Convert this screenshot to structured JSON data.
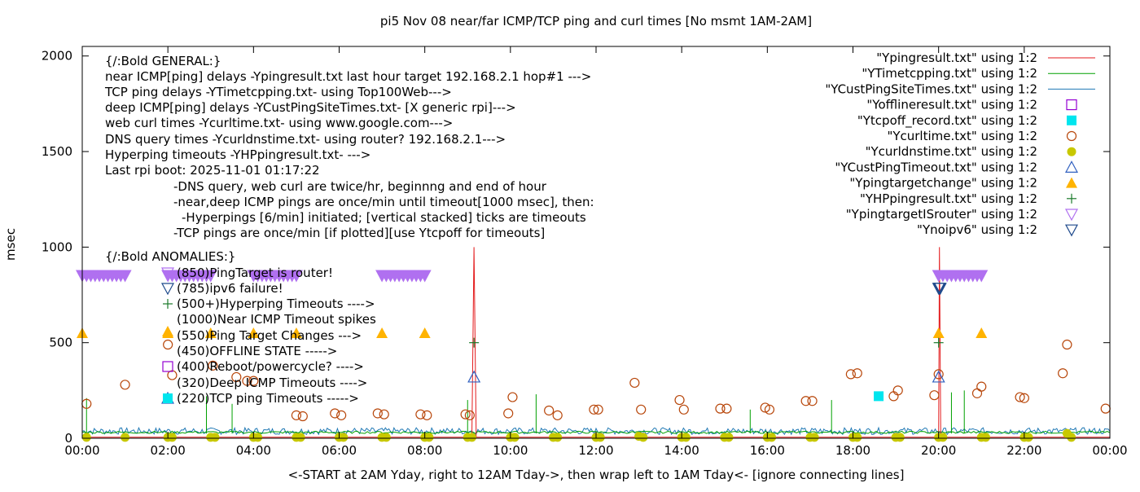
{
  "chart_data": {
    "type": "line",
    "title": "pi5 Nov 08  near/far ICMP/TCP ping and curl times [No msmt 1AM-2AM]",
    "xlabel": "<-START at 2AM Yday, right to 12AM Tday->, then wrap left to 1AM Tday<- [ignore connecting lines]",
    "ylabel": "msec",
    "xlim": [
      0,
      24
    ],
    "ylim": [
      0,
      2050
    ],
    "x_ticks": [
      "00:00",
      "02:00",
      "04:00",
      "06:00",
      "08:00",
      "10:00",
      "12:00",
      "14:00",
      "16:00",
      "18:00",
      "20:00",
      "22:00",
      "00:00"
    ],
    "y_ticks": [
      "0",
      "500",
      "1000",
      "1500",
      "2000"
    ],
    "y_tick_values": [
      0,
      500,
      1000,
      1500,
      2000
    ],
    "grid": false,
    "legend_position": "top-right",
    "colors": {
      "ypingresult": "#e31a1c",
      "ytimetcpping": "#00a000",
      "ycustpingsitetimes": "#1f78b4",
      "yofflineresult": "#9400d3",
      "ytcpoff": "#00e5ee",
      "ycurltime": "#b8470b",
      "ycurldnstime": "#c8c800",
      "ycustpingtimeout": "#3060c0",
      "ypingtargetchange": "#ffb300",
      "yhppingresult": "#1a7a2a",
      "ypingtargetisrouter": "#b070f0",
      "ynoipv6": "#1f4a8c"
    },
    "legend": [
      {
        "label": "\"Ypingresult.txt\" using 1:2",
        "key": "ypingresult",
        "marker": "line"
      },
      {
        "label": "\"YTimetcpping.txt\" using 1:2",
        "key": "ytimetcpping",
        "marker": "line"
      },
      {
        "label": "\"YCustPingSiteTimes.txt\" using 1:2",
        "key": "ycustpingsitetimes",
        "marker": "line"
      },
      {
        "label": "\"Yofflineresult.txt\" using 1:2",
        "key": "yofflineresult",
        "marker": "square-open"
      },
      {
        "label": "\"Ytcpoff_record.txt\" using 1:2",
        "key": "ytcpoff",
        "marker": "square-filled"
      },
      {
        "label": "\"Ycurltime.txt\" using 1:2",
        "key": "ycurltime",
        "marker": "circle-open"
      },
      {
        "label": "\"Ycurldnstime.txt\" using 1:2",
        "key": "ycurldnstime",
        "marker": "circle-filled"
      },
      {
        "label": "\"YCustPingTimeout.txt\" using 1:2",
        "key": "ycustpingtimeout",
        "marker": "triangle-open"
      },
      {
        "label": "\"Ypingtargetchange\" using 1:2",
        "key": "ypingtargetchange",
        "marker": "triangle-filled"
      },
      {
        "label": "\"YHPpingresult.txt\" using 1:2",
        "key": "yhppingresult",
        "marker": "plus"
      },
      {
        "label": "\"YpingtargetISrouter\" using 1:2",
        "key": "ypingtargetisrouter",
        "marker": "triangle-down-open"
      },
      {
        "label": "\"Ynoipv6\" using 1:2",
        "key": "ynoipv6",
        "marker": "triangle-down-open"
      }
    ],
    "annotations": [
      "{/:Bold GENERAL:}",
      "near ICMP[ping] delays -Ypingresult.txt last hour target 192.168.2.1 hop#1 --->",
      "TCP ping delays -YTimetcpping.txt- using Top100Web--->",
      "deep ICMP[ping] delays -YCustPingSiteTimes.txt- [X generic rpi]--->",
      "web curl times -Ycurltime.txt- using www.google.com--->",
      "DNS query times -Ycurldnstime.txt- using router? 192.168.2.1--->",
      "Hyperping timeouts -YHPpingresult.txt- --->",
      "Last rpi boot: 2025-11-01 01:17:22",
      "-DNS query, web curl are twice/hr, beginnng and end of hour",
      "-near,deep ICMP pings are once/min until timeout[1000 msec], then:",
      "-Hyperpings [6/min] initiated; [vertical stacked] ticks are timeouts",
      "-TCP pings are once/min [if plotted][use Ytcpoff for timeouts]",
      "{/:Bold ANOMALIES:}",
      "(850)PingTarget is router!",
      "(785)ipv6 failure!",
      "(500+)Hyperping Timeouts ---->",
      "(1000)Near ICMP Timeout spikes",
      "(550)Ping Target Changes --->",
      "(450)OFFLINE STATE ----->",
      "(400)Reboot/powercycle? ---->",
      "(320)Deep ICMP Timeouts ---->",
      "(220)TCP ping Timeouts ----->"
    ],
    "series": [
      {
        "name": "\"Ycurltime.txt\" using 1:2",
        "key": "ycurltime",
        "type": "scatter",
        "x": [
          0.1,
          1.0,
          2.0,
          2.1,
          3.05,
          3.6,
          3.85,
          4.0,
          5.0,
          5.15,
          5.9,
          6.05,
          6.9,
          7.05,
          7.9,
          8.05,
          8.95,
          9.05,
          9.95,
          10.05,
          10.9,
          11.1,
          11.95,
          12.05,
          12.9,
          13.05,
          13.95,
          14.05,
          14.9,
          15.05,
          15.95,
          16.05,
          16.9,
          17.05,
          17.95,
          18.1,
          18.95,
          19.05,
          19.9,
          20.0,
          20.9,
          21.0,
          21.9,
          22.0,
          22.9,
          23.0,
          23.9
        ],
        "y": [
          180,
          280,
          490,
          330,
          380,
          320,
          300,
          300,
          120,
          115,
          130,
          120,
          130,
          125,
          125,
          120,
          125,
          120,
          130,
          215,
          145,
          120,
          150,
          150,
          290,
          150,
          200,
          150,
          155,
          155,
          160,
          150,
          195,
          195,
          335,
          340,
          220,
          250,
          225,
          335,
          235,
          270,
          215,
          210,
          340,
          490,
          155
        ]
      },
      {
        "name": "\"Ycurldnstime.txt\" using 1:2",
        "key": "ycurldnstime",
        "type": "scatter",
        "x": [
          0.1,
          1.0,
          2.0,
          2.1,
          3.0,
          3.1,
          4.0,
          4.1,
          5.0,
          5.1,
          6.0,
          6.1,
          7.0,
          7.1,
          8.0,
          8.1,
          9.0,
          9.1,
          10.0,
          10.1,
          11.0,
          11.1,
          12.0,
          12.1,
          13.0,
          13.1,
          14.0,
          14.1,
          15.0,
          15.1,
          16.0,
          16.1,
          17.0,
          17.1,
          18.0,
          18.1,
          19.0,
          19.1,
          20.0,
          20.1,
          21.0,
          21.1,
          22.0,
          22.1,
          23.0,
          23.1
        ],
        "y": [
          5,
          5,
          5,
          5,
          5,
          5,
          5,
          5,
          5,
          5,
          5,
          5,
          5,
          5,
          5,
          5,
          5,
          5,
          5,
          5,
          5,
          5,
          5,
          5,
          10,
          5,
          5,
          5,
          5,
          5,
          5,
          5,
          5,
          5,
          5,
          5,
          5,
          5,
          5,
          5,
          5,
          5,
          5,
          5,
          25,
          5
        ]
      },
      {
        "name": "\"Ypingtargetchange\" using 1:2",
        "key": "ypingtargetchange",
        "type": "scatter",
        "x": [
          0.0,
          2.0,
          3.0,
          4.0,
          5.0,
          7.0,
          8.0,
          20.0,
          21.0
        ],
        "y": [
          550,
          550,
          550,
          550,
          550,
          550,
          550,
          550,
          550
        ]
      },
      {
        "name": "\"YpingtargetISrouter\" using 1:2",
        "key": "ypingtargetisrouter",
        "type": "scatter",
        "x": [
          0.0,
          0.1,
          0.2,
          0.3,
          0.4,
          0.5,
          0.6,
          0.7,
          0.8,
          0.9,
          1.0,
          2.0,
          2.1,
          2.2,
          2.3,
          2.4,
          2.5,
          2.6,
          2.7,
          2.8,
          2.9,
          3.0,
          4.0,
          4.1,
          4.2,
          4.3,
          4.4,
          4.5,
          4.6,
          4.7,
          4.8,
          4.9,
          5.0,
          7.0,
          7.1,
          7.2,
          7.3,
          7.4,
          7.5,
          7.6,
          7.7,
          7.8,
          7.9,
          8.0,
          20.0,
          20.1,
          20.2,
          20.3,
          20.4,
          20.5,
          20.6,
          20.7,
          20.8,
          20.9,
          21.0
        ],
        "y": [
          850,
          850,
          850,
          850,
          850,
          850,
          850,
          850,
          850,
          850,
          850,
          850,
          850,
          850,
          850,
          850,
          850,
          850,
          850,
          850,
          850,
          850,
          850,
          850,
          850,
          850,
          850,
          850,
          850,
          850,
          850,
          850,
          850,
          850,
          850,
          850,
          850,
          850,
          850,
          850,
          850,
          850,
          850,
          850,
          850,
          850,
          850,
          850,
          850,
          850,
          850,
          850,
          850,
          850,
          850
        ]
      },
      {
        "name": "\"Ynoipv6\" using 1:2",
        "key": "ynoipv6",
        "type": "scatter",
        "x": [
          20.0,
          20.02,
          20.04
        ],
        "y": [
          785,
          785,
          785
        ]
      },
      {
        "name": "\"YCustPingTimeout.txt\" using 1:2",
        "key": "ycustpingtimeout",
        "type": "scatter",
        "x": [
          9.15,
          20.0
        ],
        "y": [
          320,
          320
        ]
      },
      {
        "name": "\"YHPpingresult.txt\" using 1:2",
        "key": "yhppingresult",
        "type": "scatter",
        "x": [
          9.15,
          20.0
        ],
        "y": [
          500,
          500
        ]
      },
      {
        "name": "\"Ytcpoff_record.txt\" using 1:2",
        "key": "ytcpoff",
        "type": "scatter",
        "x": [
          18.6
        ],
        "y": [
          220
        ]
      },
      {
        "name": "\"Ypingresult.txt\" using 1:2",
        "key": "ypingresult",
        "type": "line",
        "x": [
          0.0,
          9.1,
          9.15,
          9.2,
          20.0,
          20.02,
          20.05,
          24.0
        ],
        "y": [
          5,
          5,
          1000,
          5,
          5,
          1000,
          5,
          5
        ]
      },
      {
        "name": "\"YTimetcpping.txt\" using 1:2",
        "key": "ytimetcpping",
        "type": "line",
        "base": 25,
        "spikes_x": [
          0.1,
          2.9,
          3.5,
          9.0,
          10.6,
          15.6,
          17.5,
          20.3,
          20.6
        ],
        "spikes_y": [
          210,
          220,
          180,
          200,
          230,
          150,
          200,
          240,
          250
        ]
      },
      {
        "name": "\"YCustPingSiteTimes.txt\" using 1:2",
        "key": "ycustpingsitetimes",
        "type": "line",
        "base": 20,
        "noise": 35
      }
    ]
  }
}
